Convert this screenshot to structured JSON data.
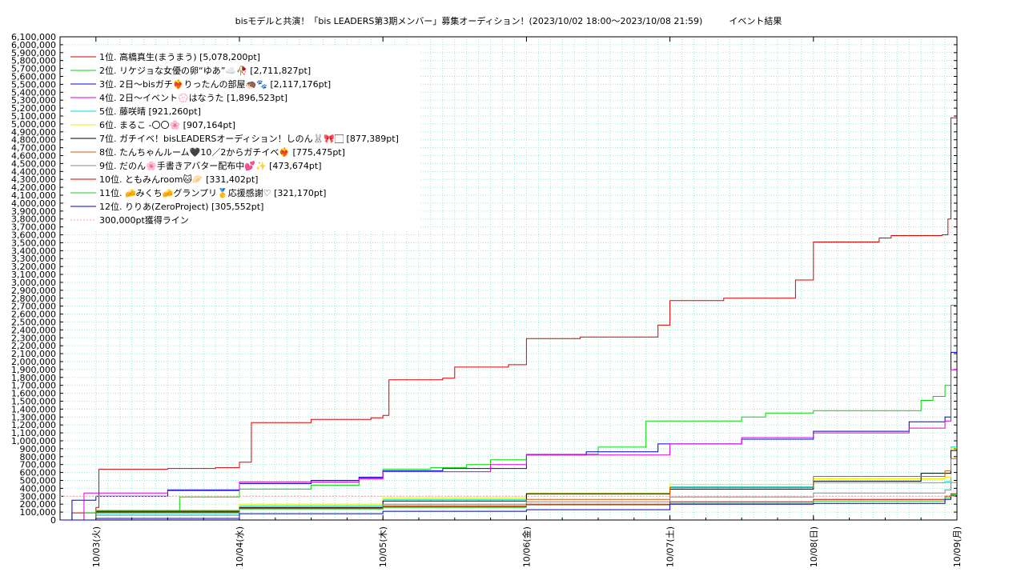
{
  "chart_data": {
    "type": "line",
    "title": "bisモデルと共演！「bis LEADERS第3期メンバー」募集オーディション！(2023/10/02 18:00〜2023/10/08 21:59)　　　イベント結果",
    "ylim": [
      0,
      6100000
    ],
    "y_tick_step": 100000,
    "xlim": [
      "2023-10-02T18:00",
      "2023-10-09T00:00"
    ],
    "x_ticks": [
      {
        "at": "2023-10-03T00:00",
        "label": "10/03(火)"
      },
      {
        "at": "2023-10-04T00:00",
        "label": "10/04(水)"
      },
      {
        "at": "2023-10-05T00:00",
        "label": "10/05(木)"
      },
      {
        "at": "2023-10-06T00:00",
        "label": "10/06(金)"
      },
      {
        "at": "2023-10-07T00:00",
        "label": "10/07(土)"
      },
      {
        "at": "2023-10-08T00:00",
        "label": "10/08(日)"
      },
      {
        "at": "2023-10-09T00:00",
        "label": "10/09(月)"
      }
    ],
    "grid": true,
    "legend_position": "top-left",
    "series": [
      {
        "name": "1位. 高橋真生(まうまう) [5,078,200pt]",
        "color": "#e00000",
        "step": true,
        "points": [
          [
            "2023-10-02T18:00",
            0
          ],
          [
            "2023-10-02T20:00",
            90000
          ],
          [
            "2023-10-03T00:00",
            160000
          ],
          [
            "2023-10-03T00:30",
            640000
          ],
          [
            "2023-10-03T12:00",
            650000
          ],
          [
            "2023-10-03T20:00",
            660000
          ],
          [
            "2023-10-04T00:00",
            730000
          ],
          [
            "2023-10-04T02:00",
            1230000
          ],
          [
            "2023-10-04T12:00",
            1270000
          ],
          [
            "2023-10-04T22:00",
            1290000
          ],
          [
            "2023-10-05T00:00",
            1320000
          ],
          [
            "2023-10-05T01:00",
            1770000
          ],
          [
            "2023-10-05T10:00",
            1790000
          ],
          [
            "2023-10-05T12:00",
            1930000
          ],
          [
            "2023-10-05T21:00",
            1960000
          ],
          [
            "2023-10-06T00:00",
            2290000
          ],
          [
            "2023-10-06T09:00",
            2310000
          ],
          [
            "2023-10-06T22:00",
            2460000
          ],
          [
            "2023-10-07T00:00",
            2770000
          ],
          [
            "2023-10-07T09:00",
            2800000
          ],
          [
            "2023-10-07T21:00",
            3030000
          ],
          [
            "2023-10-08T00:00",
            3510000
          ],
          [
            "2023-10-08T11:00",
            3560000
          ],
          [
            "2023-10-08T13:00",
            3590000
          ],
          [
            "2023-10-08T21:30",
            3600000
          ],
          [
            "2023-10-08T22:30",
            3800000
          ],
          [
            "2023-10-08T23:00",
            5078200
          ],
          [
            "2023-10-09T00:00",
            5078200
          ]
        ]
      },
      {
        "name": "2位. リケジョな女優の卵“ゆあ”☁️🥀 [2,711,827pt]",
        "color": "#00dd00",
        "step": true,
        "points": [
          [
            "2023-10-02T18:00",
            0
          ],
          [
            "2023-10-02T22:00",
            90000
          ],
          [
            "2023-10-03T00:00",
            110000
          ],
          [
            "2023-10-03T14:00",
            290000
          ],
          [
            "2023-10-04T00:00",
            390000
          ],
          [
            "2023-10-04T12:00",
            440000
          ],
          [
            "2023-10-04T20:00",
            530000
          ],
          [
            "2023-10-05T00:00",
            640000
          ],
          [
            "2023-10-05T08:00",
            660000
          ],
          [
            "2023-10-05T14:00",
            700000
          ],
          [
            "2023-10-05T18:00",
            760000
          ],
          [
            "2023-10-06T00:00",
            830000
          ],
          [
            "2023-10-06T12:00",
            920000
          ],
          [
            "2023-10-06T20:00",
            1250000
          ],
          [
            "2023-10-07T12:00",
            1300000
          ],
          [
            "2023-10-07T16:00",
            1350000
          ],
          [
            "2023-10-08T00:00",
            1380000
          ],
          [
            "2023-10-08T18:00",
            1510000
          ],
          [
            "2023-10-08T20:00",
            1560000
          ],
          [
            "2023-10-08T22:00",
            1700000
          ],
          [
            "2023-10-08T23:00",
            2711827
          ],
          [
            "2023-10-09T00:00",
            2711827
          ]
        ]
      },
      {
        "name": "3位. 2日〜bisガチ❤️‍🔥りったんの部屋🦔🐾 [2,117,176pt]",
        "color": "#0000dd",
        "step": true,
        "points": [
          [
            "2023-10-02T18:00",
            0
          ],
          [
            "2023-10-02T20:00",
            250000
          ],
          [
            "2023-10-03T00:00",
            300000
          ],
          [
            "2023-10-03T12:00",
            380000
          ],
          [
            "2023-10-04T00:00",
            460000
          ],
          [
            "2023-10-04T12:00",
            500000
          ],
          [
            "2023-10-04T20:00",
            540000
          ],
          [
            "2023-10-05T00:00",
            620000
          ],
          [
            "2023-10-05T10:00",
            650000
          ],
          [
            "2023-10-06T00:00",
            820000
          ],
          [
            "2023-10-06T10:00",
            860000
          ],
          [
            "2023-10-06T22:00",
            960000
          ],
          [
            "2023-10-07T12:00",
            1020000
          ],
          [
            "2023-10-08T00:00",
            1120000
          ],
          [
            "2023-10-08T16:00",
            1240000
          ],
          [
            "2023-10-08T22:00",
            1300000
          ],
          [
            "2023-10-08T23:00",
            2117176
          ],
          [
            "2023-10-09T00:00",
            2117176
          ]
        ]
      },
      {
        "name": "4位. 2日〜イベント💮はなうた [1,896,523pt]",
        "color": "#dd00dd",
        "step": true,
        "points": [
          [
            "2023-10-02T18:00",
            0
          ],
          [
            "2023-10-02T22:00",
            340000
          ],
          [
            "2023-10-03T12:00",
            370000
          ],
          [
            "2023-10-04T00:00",
            480000
          ],
          [
            "2023-10-04T20:00",
            520000
          ],
          [
            "2023-10-05T00:00",
            610000
          ],
          [
            "2023-10-05T18:00",
            700000
          ],
          [
            "2023-10-06T00:00",
            820000
          ],
          [
            "2023-10-07T00:00",
            960000
          ],
          [
            "2023-10-07T12:00",
            1040000
          ],
          [
            "2023-10-08T00:00",
            1100000
          ],
          [
            "2023-10-08T16:00",
            1160000
          ],
          [
            "2023-10-08T22:00",
            1250000
          ],
          [
            "2023-10-08T23:00",
            1896523
          ],
          [
            "2023-10-09T00:00",
            1896523
          ]
        ]
      },
      {
        "name": "5位. 藤咲晴 [921,260pt]",
        "color": "#00dddd",
        "step": true,
        "points": [
          [
            "2023-10-02T18:00",
            0
          ],
          [
            "2023-10-03T00:00",
            80000
          ],
          [
            "2023-10-04T00:00",
            180000
          ],
          [
            "2023-10-05T00:00",
            260000
          ],
          [
            "2023-10-06T00:00",
            330000
          ],
          [
            "2023-10-07T00:00",
            420000
          ],
          [
            "2023-10-08T00:00",
            470000
          ],
          [
            "2023-10-08T22:00",
            480000
          ],
          [
            "2023-10-08T23:00",
            921260
          ],
          [
            "2023-10-09T00:00",
            921260
          ]
        ]
      },
      {
        "name": "6位. まるこ -〇〇🌸 [907,164pt]",
        "color": "#eeee00",
        "step": true,
        "points": [
          [
            "2023-10-02T18:00",
            0
          ],
          [
            "2023-10-03T00:00",
            90000
          ],
          [
            "2023-10-04T00:00",
            200000
          ],
          [
            "2023-10-05T00:00",
            280000
          ],
          [
            "2023-10-06T00:00",
            340000
          ],
          [
            "2023-10-07T00:00",
            450000
          ],
          [
            "2023-10-08T00:00",
            520000
          ],
          [
            "2023-10-08T22:00",
            540000
          ],
          [
            "2023-10-08T23:00",
            907164
          ],
          [
            "2023-10-09T00:00",
            907164
          ]
        ]
      },
      {
        "name": "7位. ガチイベ！bisLEADERSオーディション！しのん🐰🎀🏻 [877,389pt]",
        "color": "#000000",
        "step": true,
        "points": [
          [
            "2023-10-02T18:00",
            0
          ],
          [
            "2023-10-03T00:00",
            100000
          ],
          [
            "2023-10-04T00:00",
            160000
          ],
          [
            "2023-10-05T00:00",
            240000
          ],
          [
            "2023-10-06T00:00",
            330000
          ],
          [
            "2023-10-07T00:00",
            390000
          ],
          [
            "2023-10-08T00:00",
            490000
          ],
          [
            "2023-10-08T18:00",
            590000
          ],
          [
            "2023-10-08T23:00",
            877389
          ],
          [
            "2023-10-09T00:00",
            877389
          ]
        ]
      },
      {
        "name": "8位. たんちゃんルーム🖤10／2からガチイベ❤️‍🔥 [775,475pt]",
        "color": "#dd5500",
        "step": true,
        "points": [
          [
            "2023-10-02T18:00",
            0
          ],
          [
            "2023-10-03T00:00",
            120000
          ],
          [
            "2023-10-04T00:00",
            150000
          ],
          [
            "2023-10-05T00:00",
            180000
          ],
          [
            "2023-10-06T00:00",
            260000
          ],
          [
            "2023-10-07T00:00",
            410000
          ],
          [
            "2023-10-08T00:00",
            550000
          ],
          [
            "2023-10-08T22:00",
            620000
          ],
          [
            "2023-10-08T23:00",
            775475
          ],
          [
            "2023-10-09T00:00",
            775475
          ]
        ]
      },
      {
        "name": "9位. だのん🌸手書きアバター配布中💕✨ [473,674pt]",
        "color": "#888888",
        "step": true,
        "points": [
          [
            "2023-10-02T18:00",
            0
          ],
          [
            "2023-10-03T00:00",
            60000
          ],
          [
            "2023-10-04T00:00",
            140000
          ],
          [
            "2023-10-05T00:00",
            200000
          ],
          [
            "2023-10-06T00:00",
            230000
          ],
          [
            "2023-10-07T00:00",
            290000
          ],
          [
            "2023-10-08T00:00",
            340000
          ],
          [
            "2023-10-08T22:00",
            380000
          ],
          [
            "2023-10-08T23:00",
            473674
          ],
          [
            "2023-10-09T00:00",
            473674
          ]
        ]
      },
      {
        "name": "10位. ともみんroom🐱🥟 [331,402pt]",
        "color": "#cc0000",
        "step": true,
        "points": [
          [
            "2023-10-02T18:00",
            0
          ],
          [
            "2023-10-03T00:00",
            110000
          ],
          [
            "2023-10-04T00:00",
            150000
          ],
          [
            "2023-10-05T00:00",
            170000
          ],
          [
            "2023-10-06T00:00",
            200000
          ],
          [
            "2023-10-07T00:00",
            230000
          ],
          [
            "2023-10-08T00:00",
            260000
          ],
          [
            "2023-10-08T22:00",
            300000
          ],
          [
            "2023-10-08T23:00",
            331402
          ],
          [
            "2023-10-09T00:00",
            331402
          ]
        ]
      },
      {
        "name": "11位. 🧀みくち🧀グランプリ🥇応援感謝♡ [321,170pt]",
        "color": "#22cc22",
        "step": true,
        "points": [
          [
            "2023-10-02T18:00",
            0
          ],
          [
            "2023-10-03T00:00",
            120000
          ],
          [
            "2023-10-04T00:00",
            140000
          ],
          [
            "2023-10-05T00:00",
            160000
          ],
          [
            "2023-10-06T00:00",
            190000
          ],
          [
            "2023-10-07T00:00",
            210000
          ],
          [
            "2023-10-08T00:00",
            240000
          ],
          [
            "2023-10-08T22:00",
            280000
          ],
          [
            "2023-10-08T23:00",
            321170
          ],
          [
            "2023-10-09T00:00",
            321170
          ]
        ]
      },
      {
        "name": "12位. りりあ(ZeroProject) [305,552pt]",
        "color": "#0000cc",
        "step": true,
        "points": [
          [
            "2023-10-02T18:00",
            0
          ],
          [
            "2023-10-03T00:00",
            20000
          ],
          [
            "2023-10-04T00:00",
            80000
          ],
          [
            "2023-10-05T00:00",
            110000
          ],
          [
            "2023-10-06T00:00",
            130000
          ],
          [
            "2023-10-07T00:00",
            200000
          ],
          [
            "2023-10-08T00:00",
            210000
          ],
          [
            "2023-10-08T22:00",
            260000
          ],
          [
            "2023-10-08T23:00",
            305552
          ],
          [
            "2023-10-09T00:00",
            305552
          ]
        ]
      },
      {
        "name": "300,000pt獲得ライン",
        "color": "#ff9999",
        "dashed": true,
        "points": [
          [
            "2023-10-02T18:00",
            300000
          ],
          [
            "2023-10-09T00:00",
            300000
          ]
        ]
      }
    ]
  }
}
